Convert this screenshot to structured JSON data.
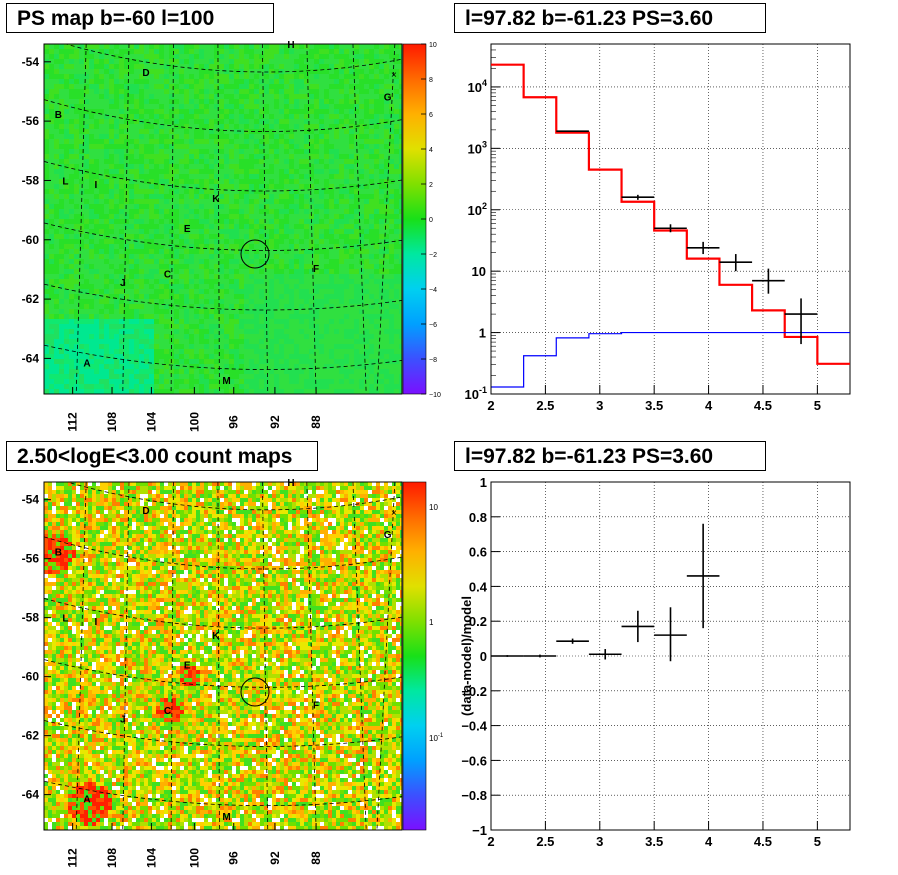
{
  "titles": {
    "ps_map": "PS map b=-60 l=100",
    "spectrum": "l=97.82 b=-61.23 PS=3.60",
    "count_maps": "2.50<logE<3.00 count maps",
    "residual": "l=97.82 b=-61.23 PS=3.60"
  },
  "map_labels": {
    "y_ticks": [
      "-54",
      "-56",
      "-58",
      "-60",
      "-62",
      "-64"
    ],
    "x_ticks": [
      "112",
      "108",
      "104",
      "100",
      "96",
      "92",
      "88"
    ],
    "sources": [
      "A",
      "B",
      "C",
      "D",
      "E",
      "F",
      "G",
      "H",
      "I",
      "J",
      "K",
      "L",
      "M"
    ]
  },
  "colorbars": {
    "ps_map_ticks": [
      "10",
      "8",
      "6",
      "4",
      "2",
      "0",
      "−2",
      "−4",
      "−6",
      "−8",
      "−10"
    ],
    "count_ticks": [
      "10",
      "1"
    ],
    "count_tick_low": "10",
    "count_tick_low_exp": "-1"
  },
  "colors": {
    "model": "#ff0000",
    "background": "#0000ff",
    "data": "#000000"
  },
  "chart_data": [
    {
      "type": "heatmap",
      "title": "PS map b=-60 l=100",
      "ylim": [
        -65.2,
        -53.4
      ],
      "xlim": [
        115,
        85
      ],
      "x_ticks": [
        112,
        108,
        104,
        100,
        96,
        92,
        88
      ],
      "y_ticks": [
        -54,
        -56,
        -58,
        -60,
        -62,
        -64
      ],
      "colorbar": [
        -10,
        10
      ]
    },
    {
      "type": "line",
      "title": "l=97.82 b=-61.23 PS=3.60",
      "x_ticks": [
        "2",
        "2.5",
        "3",
        "3.5",
        "4",
        "4.5",
        "5"
      ],
      "y_ticks": [
        "10^-1",
        "1",
        "10",
        "10^2",
        "10^3",
        "10^4"
      ],
      "xlim": [
        2,
        5.3
      ],
      "ylim": [
        0.1,
        50000
      ],
      "yscale": "log",
      "grid": true,
      "series": [
        {
          "edges": [
            2,
            2.3,
            2.6,
            2.9,
            3.2,
            3.5,
            3.8,
            4.1,
            4.4,
            4.7,
            5.0,
            5.3
          ],
          "values": [
            23000,
            6800,
            1800,
            450,
            135,
            46,
            16,
            6,
            2.3,
            0.85,
            0.31
          ]
        },
        {
          "edges": [
            2,
            2.3,
            2.6,
            2.9,
            3.2,
            3.5,
            3.8,
            4.1,
            4.4,
            4.7,
            5.0,
            5.3
          ],
          "values": [
            0.13,
            0.42,
            0.82,
            0.96,
            1,
            1,
            1,
            1,
            1,
            1,
            1
          ]
        },
        {
          "points": [
            {
              "x": 2.75,
              "y": 1900,
              "xerr": 0.15,
              "ylo": 1850,
              "yhi": 1950
            },
            {
              "x": 3.35,
              "y": 160,
              "xerr": 0.15,
              "ylo": 145,
              "yhi": 175
            },
            {
              "x": 3.65,
              "y": 50,
              "xerr": 0.15,
              "ylo": 43,
              "yhi": 58
            },
            {
              "x": 3.95,
              "y": 24,
              "xerr": 0.15,
              "ylo": 19,
              "yhi": 30
            },
            {
              "x": 4.25,
              "y": 14,
              "xerr": 0.15,
              "ylo": 10,
              "yhi": 19
            },
            {
              "x": 4.55,
              "y": 7,
              "xerr": 0.15,
              "ylo": 4.3,
              "yhi": 11
            },
            {
              "x": 4.85,
              "y": 2,
              "xerr": 0.15,
              "ylo": 0.65,
              "yhi": 3.6
            }
          ]
        }
      ]
    },
    {
      "type": "heatmap",
      "title": "2.50<logE<3.00 count maps",
      "ylim": [
        -65.2,
        -53.4
      ],
      "xlim": [
        115,
        85
      ],
      "x_ticks": [
        112,
        108,
        104,
        100,
        96,
        92,
        88
      ],
      "y_ticks": [
        -54,
        -56,
        -58,
        -60,
        -62,
        -64
      ],
      "colorbar_scale": "log"
    },
    {
      "type": "scatter",
      "title": "l=97.82 b=-61.23 PS=3.60",
      "ylabel": "(data-model)/model",
      "x_ticks": [
        "2",
        "2.5",
        "3",
        "3.5",
        "4",
        "4.5",
        "5"
      ],
      "y_ticks": [
        "1",
        "0.8",
        "0.6",
        "0.4",
        "0.2",
        "0",
        "−0.2",
        "−0.4",
        "−0.6",
        "−0.8",
        "−1"
      ],
      "xlim": [
        2,
        5.3
      ],
      "ylim": [
        -1,
        1
      ],
      "grid": true,
      "points": [
        {
          "x": 2.15,
          "y": 0.0,
          "xerr": 0.15,
          "ylo": -0.005,
          "yhi": 0.005
        },
        {
          "x": 2.45,
          "y": 0.0,
          "xerr": 0.15,
          "ylo": -0.008,
          "yhi": 0.008
        },
        {
          "x": 2.75,
          "y": 0.085,
          "xerr": 0.15,
          "ylo": 0.07,
          "yhi": 0.1
        },
        {
          "x": 3.05,
          "y": 0.01,
          "xerr": 0.15,
          "ylo": -0.02,
          "yhi": 0.04
        },
        {
          "x": 3.35,
          "y": 0.17,
          "xerr": 0.15,
          "ylo": 0.08,
          "yhi": 0.26
        },
        {
          "x": 3.65,
          "y": 0.12,
          "xerr": 0.15,
          "ylo": -0.03,
          "yhi": 0.28
        },
        {
          "x": 3.95,
          "y": 0.46,
          "xerr": 0.15,
          "ylo": 0.16,
          "yhi": 0.76
        }
      ]
    }
  ]
}
